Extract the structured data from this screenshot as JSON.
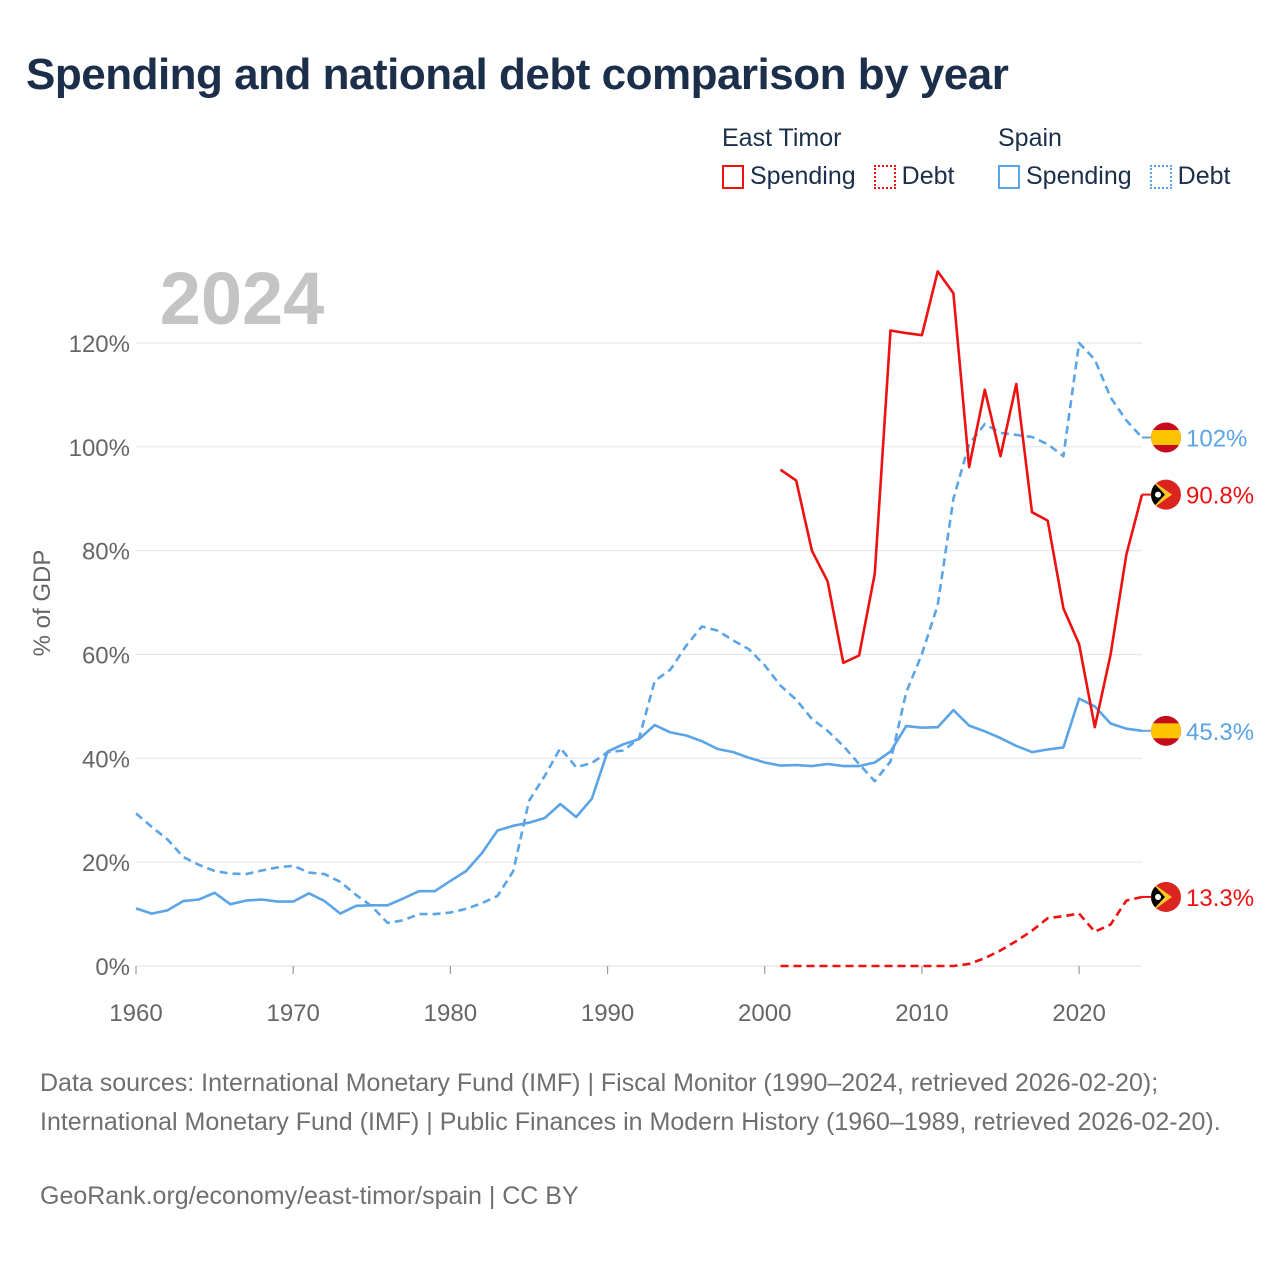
{
  "title": "Spending and national debt comparison by year",
  "colors": {
    "east_timor": "#ee1111",
    "spain": "#5ba4e6",
    "grid": "#e6e6e6",
    "year_label": "#c4c4c4",
    "axis_text": "#666666"
  },
  "legend": {
    "east_timor": {
      "name": "East Timor",
      "spending": "Spending",
      "debt": "Debt"
    },
    "spain": {
      "name": "Spain",
      "spending": "Spending",
      "debt": "Debt"
    }
  },
  "chart_data": {
    "type": "line",
    "title": "Spending and national debt comparison by year",
    "year_label": "2024",
    "ylabel": "% of GDP",
    "xlabel": "",
    "xlim": [
      1960,
      2024
    ],
    "ylim": [
      0,
      130
    ],
    "x_ticks": [
      1960,
      1970,
      1980,
      1990,
      2000,
      2010,
      2020
    ],
    "y_ticks": [
      0,
      20,
      40,
      60,
      80,
      100,
      120
    ],
    "y_tick_labels": [
      "0%",
      "20%",
      "40%",
      "60%",
      "80%",
      "100%",
      "120%"
    ],
    "series": [
      {
        "name": "Spain Spending",
        "country": "spain",
        "style": "solid",
        "end_label": "45.3%",
        "x": [
          1960,
          1961,
          1962,
          1963,
          1964,
          1965,
          1966,
          1967,
          1968,
          1969,
          1970,
          1971,
          1972,
          1973,
          1974,
          1975,
          1976,
          1977,
          1978,
          1979,
          1980,
          1981,
          1982,
          1983,
          1984,
          1985,
          1986,
          1987,
          1988,
          1989,
          1990,
          1991,
          1992,
          1993,
          1994,
          1995,
          1996,
          1997,
          1998,
          1999,
          2000,
          2001,
          2002,
          2003,
          2004,
          2005,
          2006,
          2007,
          2008,
          2009,
          2010,
          2011,
          2012,
          2013,
          2014,
          2015,
          2016,
          2017,
          2018,
          2019,
          2020,
          2021,
          2022,
          2023,
          2024
        ],
        "y": [
          11.1,
          10.1,
          10.7,
          12.5,
          12.8,
          14.1,
          11.9,
          12.6,
          12.8,
          12.4,
          12.4,
          14.0,
          12.5,
          10.1,
          11.6,
          11.7,
          11.7,
          13.0,
          14.4,
          14.4,
          16.4,
          18.3,
          21.7,
          26.1,
          27.0,
          27.6,
          28.5,
          31.2,
          28.7,
          32.2,
          41.3,
          42.7,
          43.7,
          46.4,
          45.0,
          44.4,
          43.3,
          41.8,
          41.2,
          40.1,
          39.2,
          38.6,
          38.7,
          38.5,
          38.9,
          38.5,
          38.5,
          39.2,
          41.3,
          46.2,
          45.9,
          46.0,
          49.3,
          46.3,
          45.2,
          43.9,
          42.4,
          41.2,
          41.7,
          42.1,
          51.5,
          50.0,
          46.7,
          45.7,
          45.3
        ]
      },
      {
        "name": "Spain Debt",
        "country": "spain",
        "style": "dashed",
        "end_label": "102%",
        "x": [
          1960,
          1961,
          1962,
          1963,
          1964,
          1965,
          1966,
          1967,
          1968,
          1969,
          1970,
          1971,
          1972,
          1973,
          1974,
          1975,
          1976,
          1977,
          1978,
          1979,
          1980,
          1981,
          1982,
          1983,
          1984,
          1985,
          1986,
          1987,
          1988,
          1989,
          1990,
          1991,
          1992,
          1993,
          1994,
          1995,
          1996,
          1997,
          1998,
          1999,
          2000,
          2001,
          2002,
          2003,
          2004,
          2005,
          2006,
          2007,
          2008,
          2009,
          2010,
          2011,
          2012,
          2013,
          2014,
          2015,
          2016,
          2017,
          2018,
          2019,
          2020,
          2021,
          2022,
          2023,
          2024
        ],
        "y": [
          29.4,
          26.8,
          24.4,
          21.0,
          19.5,
          18.3,
          17.8,
          17.7,
          18.4,
          19.0,
          19.3,
          18.0,
          17.7,
          16.2,
          13.7,
          11.5,
          8.3,
          8.8,
          10.0,
          10.0,
          10.3,
          11.0,
          12.1,
          13.5,
          18.3,
          31.8,
          36.6,
          42.0,
          38.3,
          39.1,
          41.2,
          41.5,
          43.8,
          54.9,
          57.1,
          61.7,
          65.4,
          64.6,
          62.7,
          61.0,
          57.9,
          54.0,
          51.3,
          47.6,
          45.3,
          42.4,
          38.9,
          35.6,
          39.4,
          52.7,
          60.1,
          69.5,
          90.0,
          100.5,
          104.4,
          102.7,
          102.3,
          101.9,
          100.5,
          98.2,
          120.0,
          116.8,
          109.5,
          105.1,
          101.8
        ]
      },
      {
        "name": "East Timor Spending",
        "country": "east_timor",
        "style": "solid",
        "end_label": "90.8%",
        "x": [
          2001,
          2002,
          2003,
          2004,
          2005,
          2006,
          2007,
          2008,
          2009,
          2010,
          2011,
          2012,
          2013,
          2014,
          2015,
          2016,
          2017,
          2018,
          2019,
          2020,
          2021,
          2022,
          2023,
          2024
        ],
        "y": [
          95.6,
          93.5,
          80.0,
          74.1,
          58.4,
          59.8,
          75.6,
          122.4,
          121.9,
          121.5,
          133.8,
          129.6,
          96.1,
          111.0,
          98.2,
          112.1,
          87.4,
          85.8,
          68.9,
          62.0,
          46.0,
          60.0,
          79.2,
          90.8
        ]
      },
      {
        "name": "East Timor Debt",
        "country": "east_timor",
        "style": "dashed",
        "end_label": "13.3%",
        "x": [
          2001,
          2002,
          2003,
          2004,
          2005,
          2006,
          2007,
          2008,
          2009,
          2010,
          2011,
          2012,
          2013,
          2014,
          2015,
          2016,
          2017,
          2018,
          2019,
          2020,
          2021,
          2022,
          2023,
          2024
        ],
        "y": [
          0,
          0,
          0,
          0,
          0,
          0,
          0,
          0,
          0,
          0,
          0,
          0,
          0.4,
          1.5,
          3.0,
          4.8,
          6.8,
          9.2,
          9.6,
          10.1,
          6.6,
          8.0,
          12.6,
          13.3
        ]
      }
    ]
  },
  "sources": {
    "line1": "Data sources: International Monetary Fund (IMF) | Fiscal Monitor (1990–2024, retrieved 2026-02-20); International Monetary Fund (IMF) | Public Finances in Modern History (1960–1989, retrieved 2026-02-20).",
    "credit": "GeoRank.org/economy/east-timor/spain | CC BY"
  }
}
